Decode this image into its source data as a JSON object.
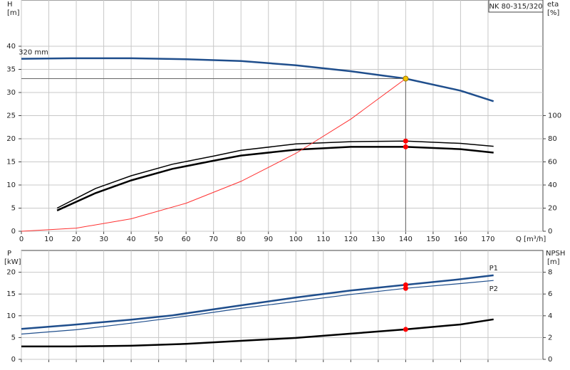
{
  "chart_data": [
    {
      "type": "line",
      "title": "NK 80-315/320",
      "y_label": "H",
      "y_unit": "[m]",
      "y2_label": "eta",
      "y2_unit": "[%]",
      "x_label": "Q [m³/h]",
      "xlim": [
        0,
        190
      ],
      "xticks": [
        0,
        10,
        20,
        30,
        40,
        50,
        60,
        70,
        80,
        90,
        100,
        110,
        120,
        130,
        140,
        150,
        160,
        170
      ],
      "ylim": [
        0,
        50
      ],
      "yticks": [
        0,
        5,
        10,
        15,
        20,
        25,
        30,
        35,
        40
      ],
      "y2lim": [
        0,
        200
      ],
      "y2ticks": [
        0,
        20,
        40,
        60,
        80,
        100
      ],
      "grid": true,
      "show_x_labels": true,
      "highlight_x": 140,
      "series": [
        {
          "name": "320 mm",
          "color": "#1f4e8c",
          "width": 2.5,
          "highlight_color": "#f5c400",
          "x": [
            0,
            18,
            40,
            60,
            80,
            100,
            120,
            140,
            160,
            172
          ],
          "values": [
            37.3,
            37.4,
            37.4,
            37.2,
            36.8,
            35.9,
            34.6,
            33,
            30.4,
            28.1
          ]
        },
        {
          "color": "#000000",
          "width": 1.5,
          "axis": "y2",
          "highlight_color": "#ff0000",
          "x": [
            13,
            27,
            40,
            55,
            70,
            80,
            100,
            120,
            140,
            160,
            172
          ],
          "values": [
            20,
            37,
            48,
            58,
            65,
            70,
            75.5,
            77.5,
            78,
            76,
            73.5
          ]
        },
        {
          "color": "#000000",
          "width": 2.5,
          "axis": "y2",
          "highlight_color": "#ff0000",
          "x": [
            13,
            27,
            40,
            55,
            70,
            80,
            100,
            120,
            140,
            160,
            172
          ],
          "values": [
            18,
            33,
            44,
            54,
            61,
            65.5,
            70.5,
            73,
            73,
            71,
            68
          ]
        },
        {
          "color": "#ff3030",
          "width": 1,
          "x": [
            0,
            20,
            40,
            60,
            80,
            100,
            120,
            140
          ],
          "values": [
            0,
            0.67,
            2.69,
            6.06,
            10.78,
            16.84,
            24.24,
            33
          ]
        }
      ]
    },
    {
      "type": "line",
      "y_label": "P",
      "y_unit": "[kW]",
      "y2_label": "NPSH",
      "y2_unit": "[m]",
      "xlim": [
        0,
        190
      ],
      "xticks": [
        0,
        10,
        20,
        30,
        40,
        50,
        60,
        70,
        80,
        90,
        100,
        110,
        120,
        130,
        140,
        150,
        160,
        170
      ],
      "ylim": [
        0,
        25
      ],
      "yticks": [
        0,
        5,
        10,
        15,
        20
      ],
      "y2lim": [
        0,
        10
      ],
      "y2ticks": [
        0,
        2,
        4,
        6,
        8
      ],
      "grid": true,
      "show_x_labels": false,
      "highlight_x": 140,
      "series": [
        {
          "name": "P1",
          "color": "#1f4e8c",
          "width": 2.5,
          "highlight_color": "#ff0000",
          "x": [
            0,
            18,
            40,
            55,
            80,
            100,
            120,
            140,
            160,
            172
          ],
          "values": [
            7,
            7.9,
            9.1,
            10.1,
            12.4,
            14.2,
            15.8,
            17.1,
            18.4,
            19.3
          ]
        },
        {
          "name": "P2",
          "color": "#1f4e8c",
          "width": 1.2,
          "highlight_color": "#ff0000",
          "x": [
            0,
            20,
            40,
            60,
            80,
            100,
            120,
            140,
            160,
            172
          ],
          "values": [
            5.8,
            6.8,
            8.3,
            9.9,
            11.7,
            13.3,
            14.9,
            16.3,
            17.4,
            18.1
          ]
        },
        {
          "color": "#000000",
          "width": 2.5,
          "axis": "y2",
          "highlight_color": "#ff0000",
          "x": [
            0,
            18,
            40,
            60,
            80,
            100,
            120,
            140,
            160,
            172
          ],
          "values": [
            1.18,
            1.18,
            1.25,
            1.42,
            1.7,
            1.97,
            2.36,
            2.75,
            3.2,
            3.67
          ]
        }
      ]
    }
  ]
}
